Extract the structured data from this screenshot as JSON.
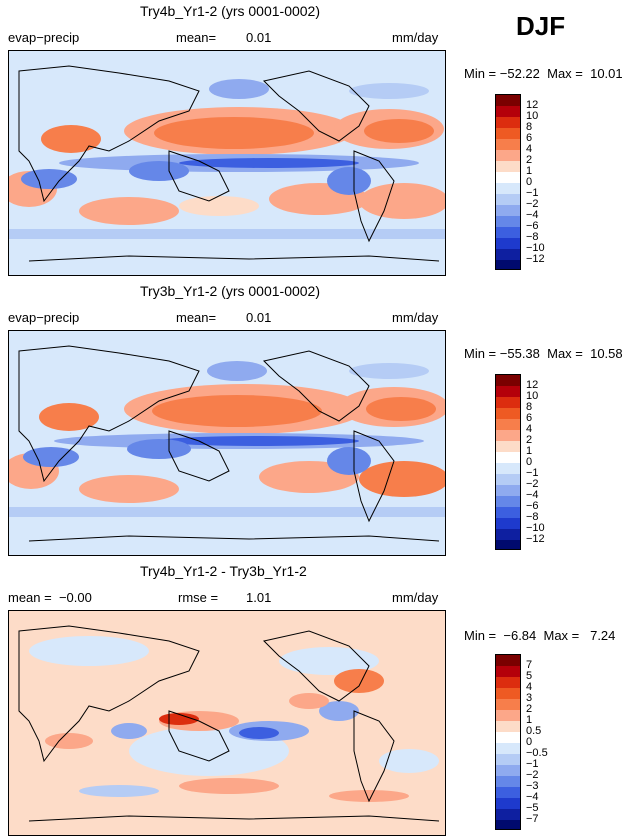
{
  "season": "DJF",
  "panels": [
    {
      "title": "Try4b_Yr1-2 (yrs 0001-0002)",
      "left_label": "evap−precip",
      "center_label": "mean=",
      "center_value": "0.01",
      "units": "mm/day",
      "stats": "Min = −52.22  Max =  10.01",
      "colorbar": {
        "colors": [
          "#7a0000",
          "#b4000a",
          "#dc2d0f",
          "#ee5a23",
          "#f77e4b",
          "#fca789",
          "#fddcc8",
          "#ffffff",
          "#d7e8fb",
          "#b5ccf5",
          "#8faaef",
          "#6587e8",
          "#3c5fe0",
          "#1e3acd",
          "#0e1fa0",
          "#000a6e"
        ],
        "labels": [
          "12",
          "10",
          "8",
          "6",
          "4",
          "2",
          "1",
          "0",
          "−1",
          "−2",
          "−4",
          "−6",
          "−8",
          "−10",
          "−12"
        ]
      }
    },
    {
      "title": "Try3b_Yr1-2 (yrs 0001-0002)",
      "left_label": "evap−precip",
      "center_label": "mean=",
      "center_value": "0.01",
      "units": "mm/day",
      "stats": "Min = −55.38  Max =  10.58",
      "colorbar": {
        "colors": [
          "#7a0000",
          "#b4000a",
          "#dc2d0f",
          "#ee5a23",
          "#f77e4b",
          "#fca789",
          "#fddcc8",
          "#ffffff",
          "#d7e8fb",
          "#b5ccf5",
          "#8faaef",
          "#6587e8",
          "#3c5fe0",
          "#1e3acd",
          "#0e1fa0",
          "#000a6e"
        ],
        "labels": [
          "12",
          "10",
          "8",
          "6",
          "4",
          "2",
          "1",
          "0",
          "−1",
          "−2",
          "−4",
          "−6",
          "−8",
          "−10",
          "−12"
        ]
      }
    },
    {
      "title": "Try4b_Yr1-2 - Try3b_Yr1-2",
      "left_label": "mean =  −0.00",
      "center_label": "rmse =",
      "center_value": "1.01",
      "units": "mm/day",
      "stats": "Min =  −6.84  Max =   7.24",
      "colorbar": {
        "colors": [
          "#7a0000",
          "#b4000a",
          "#dc2d0f",
          "#ee5a23",
          "#f77e4b",
          "#fca789",
          "#fddcc8",
          "#ffffff",
          "#d7e8fb",
          "#b5ccf5",
          "#8faaef",
          "#6587e8",
          "#3c5fe0",
          "#1e3acd",
          "#0e1fa0",
          "#000a6e"
        ],
        "labels": [
          "7",
          "5",
          "4",
          "3",
          "2",
          "1",
          "0.5",
          "0",
          "−0.5",
          "−1",
          "−2",
          "−3",
          "−4",
          "−5",
          "−7"
        ]
      }
    }
  ],
  "chart_data": {
    "type": "heatmap",
    "title": "DJF",
    "variable": "evap−precip",
    "units": "mm/day",
    "maps": [
      {
        "name": "Try4b_Yr1-2 (yrs 0001-0002)",
        "mean": 0.01,
        "min": -52.22,
        "max": 10.01,
        "levels": [
          -12,
          -10,
          -8,
          -6,
          -4,
          -2,
          -1,
          0,
          1,
          2,
          4,
          6,
          8,
          10,
          12
        ]
      },
      {
        "name": "Try3b_Yr1-2 (yrs 0001-0002)",
        "mean": 0.01,
        "min": -55.38,
        "max": 10.58,
        "levels": [
          -12,
          -10,
          -8,
          -6,
          -4,
          -2,
          -1,
          0,
          1,
          2,
          4,
          6,
          8,
          10,
          12
        ]
      },
      {
        "name": "Try4b_Yr1-2 - Try3b_Yr1-2",
        "mean": -0.0,
        "rmse": 1.01,
        "min": -6.84,
        "max": 7.24,
        "levels": [
          -7,
          -5,
          -4,
          -3,
          -2,
          -1,
          -0.5,
          0,
          0.5,
          1,
          2,
          3,
          4,
          5,
          7
        ]
      }
    ]
  }
}
